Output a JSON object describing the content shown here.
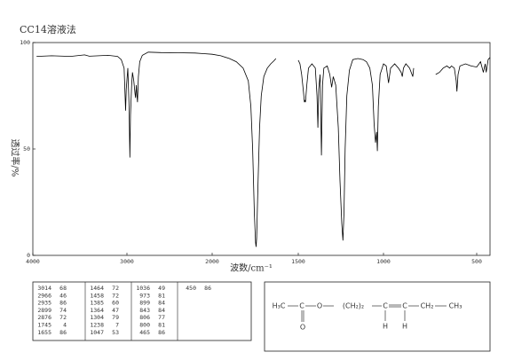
{
  "chart_data": {
    "type": "line",
    "title": "CC14溶液法",
    "x_label": "波数/cm⁻¹",
    "y_label": "透过率/%",
    "color": "#000000",
    "xlim": [
      4000,
      430
    ],
    "xticks": [
      4000,
      3000,
      2000,
      1500,
      1000,
      500
    ],
    "ylim": [
      0,
      100
    ],
    "yticks": [
      0,
      50,
      100
    ],
    "x": [
      3960,
      3800,
      3600,
      3450,
      3400,
      3200,
      3100,
      3060,
      3030,
      3020,
      3014,
      3008,
      2990,
      2975,
      2966,
      2958,
      2945,
      2935,
      2920,
      2905,
      2899,
      2890,
      2882,
      2876,
      2866,
      2850,
      2820,
      2750,
      2600,
      2400,
      2200,
      2100,
      2000,
      1950,
      1900,
      1860,
      1820,
      1790,
      1775,
      1765,
      1755,
      1748,
      1745,
      1742,
      1735,
      1725,
      1715,
      1700,
      1680,
      1660,
      1640,
      1630,
      1565,
      1500,
      1490,
      1480,
      1470,
      1464,
      1460,
      1458,
      1450,
      1440,
      1420,
      1400,
      1390,
      1385,
      1380,
      1372,
      1364,
      1358,
      1350,
      1330,
      1315,
      1304,
      1295,
      1280,
      1265,
      1255,
      1245,
      1238,
      1232,
      1225,
      1215,
      1200,
      1180,
      1150,
      1120,
      1100,
      1080,
      1065,
      1055,
      1047,
      1040,
      1036,
      1030,
      1020,
      1000,
      985,
      973,
      962,
      940,
      920,
      905,
      899,
      893,
      880,
      860,
      843,
      838,
      780,
      720,
      700,
      680,
      660,
      645,
      635,
      620,
      610,
      606,
      600,
      590,
      560,
      530,
      500,
      480,
      465,
      455,
      450,
      440,
      430
    ],
    "values": [
      93.5,
      93.8,
      93.5,
      94.2,
      93.6,
      94,
      93.5,
      92,
      88,
      75,
      68,
      78,
      88,
      70,
      46,
      66,
      80,
      86,
      82,
      76,
      74,
      80,
      75,
      72,
      84,
      91,
      94,
      95.5,
      95.3,
      95.2,
      95.1,
      94.8,
      94.5,
      93.8,
      92.5,
      91,
      88,
      82,
      70,
      50,
      20,
      6,
      4,
      8,
      30,
      60,
      75,
      84,
      88,
      90,
      91.5,
      92.5,
      null,
      91.7,
      90,
      85,
      77,
      72,
      73,
      72,
      80,
      88,
      90,
      88,
      75,
      60,
      78,
      85,
      47,
      80,
      88,
      89,
      85,
      79,
      84,
      80,
      60,
      35,
      15,
      7,
      20,
      50,
      75,
      87,
      92,
      92.5,
      92,
      91,
      88,
      80,
      62,
      53,
      58,
      49,
      70,
      85,
      90,
      89,
      81,
      88,
      90,
      88,
      86,
      84,
      88,
      90,
      88,
      84,
      88,
      null,
      85,
      86,
      88,
      89,
      88,
      89,
      88,
      82,
      77,
      85,
      89,
      90,
      89,
      88.5,
      91,
      86,
      90,
      86,
      92,
      93
    ]
  },
  "peak_table": {
    "columns": [
      [
        [
          "3014",
          "68"
        ],
        [
          "2966",
          "46"
        ],
        [
          "2935",
          "86"
        ],
        [
          "2899",
          "74"
        ],
        [
          "2876",
          "72"
        ],
        [
          "1745",
          "4"
        ],
        [
          "1655",
          "86"
        ]
      ],
      [
        [
          "1464",
          "72"
        ],
        [
          "1458",
          "72"
        ],
        [
          "1385",
          "60"
        ],
        [
          "1364",
          "47"
        ],
        [
          "1304",
          "79"
        ],
        [
          "1238",
          "7"
        ],
        [
          "1047",
          "53"
        ]
      ],
      [
        [
          "1036",
          "49"
        ],
        [
          "973",
          "81"
        ],
        [
          "899",
          "84"
        ],
        [
          "843",
          "84"
        ],
        [
          "806",
          "77"
        ],
        [
          "800",
          "81"
        ],
        [
          "465",
          "86"
        ]
      ],
      [
        [
          "450",
          "86"
        ]
      ]
    ]
  },
  "structure": {
    "chain": [
      "H₃C",
      "C",
      "O",
      "(CH₂)₂",
      "C",
      "C",
      "CH₂",
      "CH₃"
    ],
    "carbonyl_o": "O",
    "h_left": "H",
    "h_right": "H"
  }
}
